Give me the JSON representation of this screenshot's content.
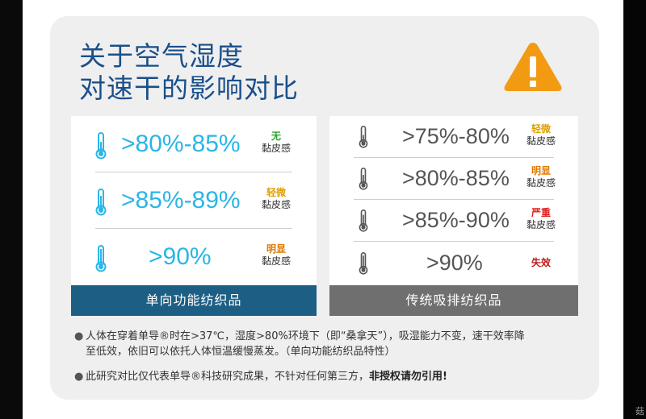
{
  "title_line1": "关于空气湿度",
  "title_line2": "对速干的影响对比",
  "left": {
    "footer": "单向功能纺织品",
    "rows": [
      {
        "range": ">80%-85%",
        "level": "无",
        "sub": "黏皮感",
        "color": "#2aa52a"
      },
      {
        "range": ">85%-89%",
        "level": "轻微",
        "sub": "黏皮感",
        "color": "#e0a100"
      },
      {
        "range": ">90%",
        "level": "明显",
        "sub": "黏皮感",
        "color": "#e07a00"
      }
    ]
  },
  "right": {
    "footer": "传统吸排纺织品",
    "rows": [
      {
        "range": ">75%-80%",
        "level": "轻微",
        "sub": "黏皮感",
        "color": "#e0a100"
      },
      {
        "range": ">80%-85%",
        "level": "明显",
        "sub": "黏皮感",
        "color": "#e07a00"
      },
      {
        "range": ">85%-90%",
        "level": "严重",
        "sub": "黏皮感",
        "color": "#e02020"
      },
      {
        "range": ">90%",
        "level": "失效",
        "sub": "",
        "color": "#c01818"
      }
    ]
  },
  "notes": {
    "note1_a": "人体在穿着单导®时在>37℃，湿度>80%环境下（即“桑拿天”），吸湿能力不变，速干效率降",
    "note1_b": "至低效，依旧可以依托人体恒温缓慢蒸发。（单向功能纺织品特性）",
    "note2_a": "此研究对比仅代表单导®科技研究成果，不针对任何第三方，",
    "note2_b": "非授权请勿引用!"
  },
  "watermark": "菇"
}
